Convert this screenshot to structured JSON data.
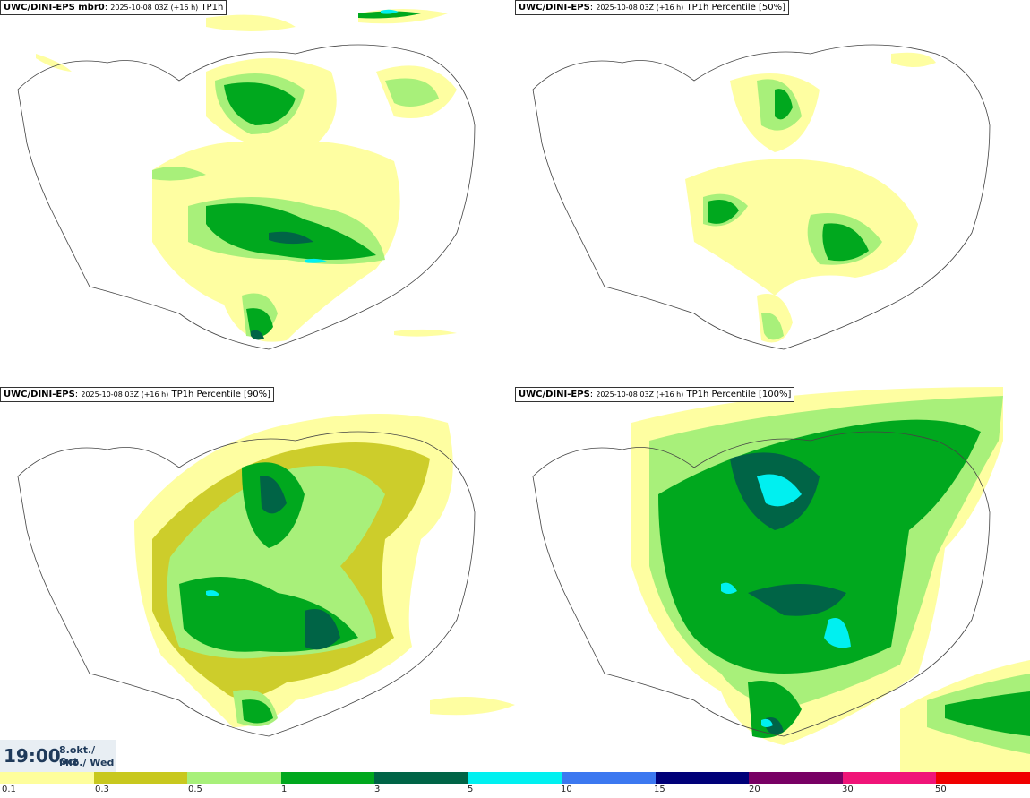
{
  "panels": [
    {
      "model": "UWC/DINI-EPS mbr0",
      "run": "2025-10-08 03Z (+16 h)",
      "field": "TP1h"
    },
    {
      "model": "UWC/DINI-EPS",
      "run": "2025-10-08 03Z (+16 h)",
      "field": "TP1h Percentile [50%]"
    },
    {
      "model": "UWC/DINI-EPS",
      "run": "2025-10-08 03Z (+16 h)",
      "field": "TP1h Percentile [90%]"
    },
    {
      "model": "UWC/DINI-EPS",
      "run": "2025-10-08 03Z (+16 h)",
      "field": "TP1h Percentile [100%]"
    }
  ],
  "valid_time": {
    "time": "19:00",
    "date": "8.okt./ Oct",
    "day": "Mið./ Wed"
  },
  "legend": {
    "labels": [
      "0.1",
      "0.3",
      "0.5",
      "1",
      "3",
      "5",
      "10",
      "15",
      "20",
      "30",
      "50"
    ],
    "colors": [
      "#fefe9c",
      "#c8c81e",
      "#a8f07a",
      "#00a81e",
      "#006446",
      "#00f0f0",
      "#3c78f0",
      "#000078",
      "#780064",
      "#f01478",
      "#f00000"
    ]
  }
}
